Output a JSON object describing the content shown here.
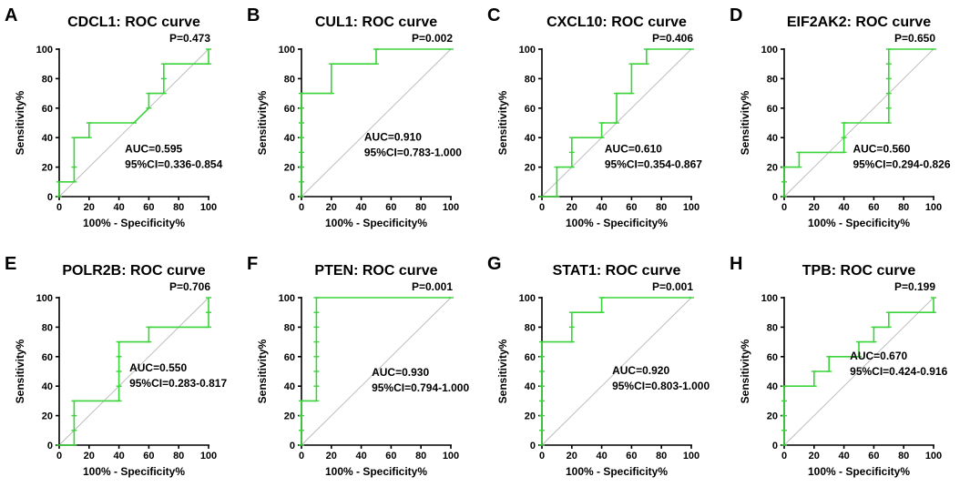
{
  "chart_data": [
    {
      "type": "line",
      "panel": "A",
      "title": "CDCL1: ROC curve",
      "xlabel": "100% - Specificity%",
      "ylabel": "Sensitivity%",
      "xlim": [
        0,
        100
      ],
      "ylim": [
        0,
        100
      ],
      "ticks": [
        0,
        20,
        40,
        60,
        80,
        100
      ],
      "x": [
        0,
        0,
        10,
        10,
        10,
        20,
        20,
        50,
        60,
        60,
        70,
        70,
        70,
        100,
        100
      ],
      "y": [
        0,
        10,
        10,
        20,
        40,
        40,
        50,
        50,
        60,
        70,
        70,
        80,
        90,
        90,
        100
      ],
      "auc": "AUC=0.595",
      "ci": "95%CI=0.336-0.854",
      "p": "P=0.473"
    },
    {
      "type": "line",
      "panel": "B",
      "title": "CUL1: ROC curve",
      "xlabel": "100% - Specificity%",
      "ylabel": "Sensitivity%",
      "xlim": [
        0,
        100
      ],
      "ylim": [
        0,
        100
      ],
      "ticks": [
        0,
        20,
        40,
        60,
        80,
        100
      ],
      "x": [
        0,
        0,
        0,
        0,
        0,
        0,
        0,
        0,
        20,
        20,
        50,
        50,
        100
      ],
      "y": [
        0,
        10,
        20,
        30,
        40,
        50,
        60,
        70,
        70,
        90,
        90,
        100,
        100
      ],
      "auc": "AUC=0.910",
      "ci": "95%CI=0.783-1.000",
      "p": "P=0.002"
    },
    {
      "type": "line",
      "panel": "C",
      "title": "CXCL10: ROC curve",
      "xlabel": "100% - Specificity%",
      "ylabel": "Sensitivity%",
      "xlim": [
        0,
        100
      ],
      "ylim": [
        0,
        100
      ],
      "ticks": [
        0,
        20,
        40,
        60,
        80,
        100
      ],
      "x": [
        0,
        10,
        10,
        20,
        20,
        20,
        40,
        40,
        50,
        50,
        60,
        60,
        70,
        70,
        100
      ],
      "y": [
        0,
        0,
        20,
        20,
        30,
        40,
        40,
        50,
        50,
        70,
        70,
        90,
        90,
        100,
        100
      ],
      "auc": "AUC=0.610",
      "ci": "95%CI=0.354-0.867",
      "p": "P=0.406"
    },
    {
      "type": "line",
      "panel": "D",
      "title": "EIF2AK2: ROC curve",
      "xlabel": "100% - Specificity%",
      "ylabel": "Sensitivity%",
      "xlim": [
        0,
        100
      ],
      "ylim": [
        0,
        100
      ],
      "ticks": [
        0,
        20,
        40,
        60,
        80,
        100
      ],
      "x": [
        0,
        0,
        0,
        10,
        10,
        40,
        40,
        40,
        70,
        70,
        70,
        70,
        70,
        70,
        100
      ],
      "y": [
        0,
        10,
        20,
        20,
        30,
        30,
        40,
        50,
        50,
        60,
        70,
        80,
        90,
        100,
        100
      ],
      "auc": "AUC=0.560",
      "ci": "95%CI=0.294-0.826",
      "p": "P=0.650"
    },
    {
      "type": "line",
      "panel": "E",
      "title": "POLR2B: ROC curve",
      "xlabel": "100% - Specificity%",
      "ylabel": "Sensitivity%",
      "xlim": [
        0,
        100
      ],
      "ylim": [
        0,
        100
      ],
      "ticks": [
        0,
        20,
        40,
        60,
        80,
        100
      ],
      "x": [
        0,
        10,
        10,
        10,
        10,
        40,
        40,
        40,
        40,
        40,
        60,
        60,
        100,
        100,
        100
      ],
      "y": [
        0,
        0,
        10,
        20,
        30,
        30,
        40,
        50,
        60,
        70,
        70,
        80,
        80,
        90,
        100
      ],
      "auc": "AUC=0.550",
      "ci": "95%CI=0.283-0.817",
      "p": "P=0.706"
    },
    {
      "type": "line",
      "panel": "F",
      "title": "PTEN: ROC curve",
      "xlabel": "100% - Specificity%",
      "ylabel": "Sensitivity%",
      "xlim": [
        0,
        100
      ],
      "ylim": [
        0,
        100
      ],
      "ticks": [
        0,
        20,
        40,
        60,
        80,
        100
      ],
      "x": [
        0,
        0,
        0,
        0,
        10,
        10,
        10,
        10,
        10,
        10,
        10,
        10,
        100
      ],
      "y": [
        0,
        10,
        20,
        30,
        30,
        40,
        50,
        60,
        70,
        80,
        90,
        100,
        100
      ],
      "auc": "AUC=0.930",
      "ci": "95%CI=0.794-1.000",
      "p": "P=0.001"
    },
    {
      "type": "line",
      "panel": "G",
      "title": "STAT1: ROC curve",
      "xlabel": "100% - Specificity%",
      "ylabel": "Sensitivity%",
      "xlim": [
        0,
        100
      ],
      "ylim": [
        0,
        100
      ],
      "ticks": [
        0,
        20,
        40,
        60,
        80,
        100
      ],
      "x": [
        0,
        0,
        0,
        0,
        0,
        0,
        0,
        0,
        20,
        20,
        20,
        40,
        40,
        100
      ],
      "y": [
        0,
        10,
        20,
        30,
        40,
        50,
        60,
        70,
        70,
        80,
        90,
        90,
        100,
        100
      ],
      "auc": "AUC=0.920",
      "ci": "95%CI=0.803-1.000",
      "p": "P=0.001"
    },
    {
      "type": "line",
      "panel": "H",
      "title": "TPB: ROC curve",
      "xlabel": "100% - Specificity%",
      "ylabel": "Sensitivity%",
      "xlim": [
        0,
        100
      ],
      "ylim": [
        0,
        100
      ],
      "ticks": [
        0,
        20,
        40,
        60,
        80,
        100
      ],
      "x": [
        0,
        0,
        0,
        0,
        0,
        20,
        20,
        30,
        30,
        50,
        50,
        60,
        60,
        70,
        70,
        100,
        100
      ],
      "y": [
        0,
        10,
        20,
        30,
        40,
        40,
        50,
        50,
        60,
        60,
        70,
        70,
        80,
        80,
        90,
        90,
        100
      ],
      "auc": "AUC=0.670",
      "ci": "95%CI=0.424-0.916",
      "p": "P=0.199"
    }
  ]
}
